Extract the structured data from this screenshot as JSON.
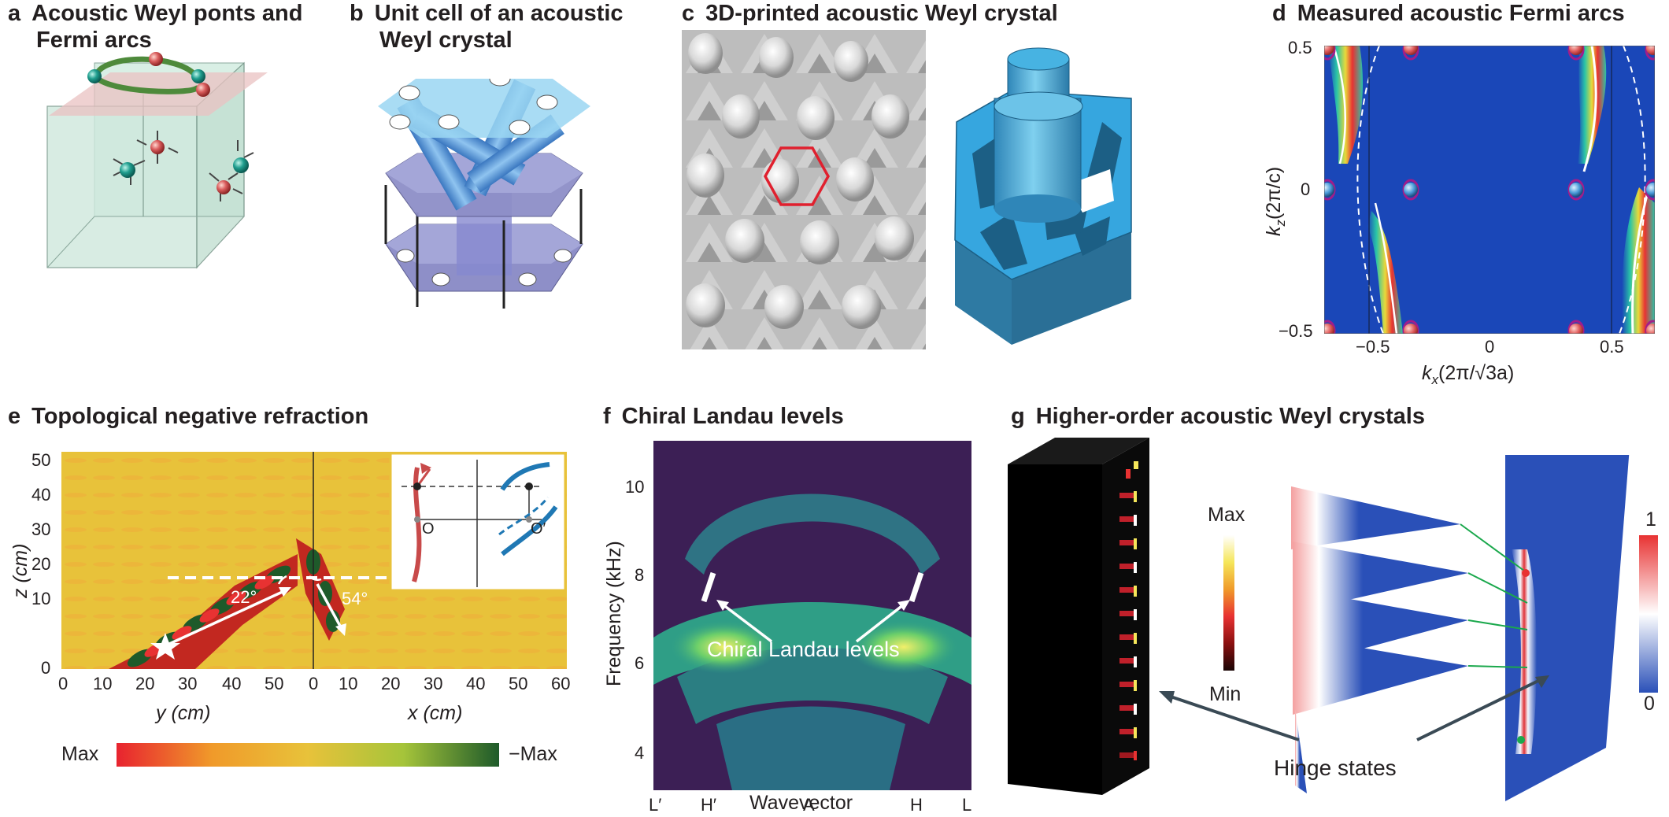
{
  "panels": {
    "a": {
      "letter": "a",
      "title_line1": "Acoustic Weyl ponts and",
      "title_line2": "Fermi arcs"
    },
    "b": {
      "letter": "b",
      "title_line1": "Unit cell of an acoustic",
      "title_line2": "Weyl crystal"
    },
    "c": {
      "letter": "c",
      "title_line1": "3D-printed acoustic Weyl crystal"
    },
    "d": {
      "letter": "d",
      "title_line1": "Measured acoustic Fermi arcs",
      "y_ticks": [
        "0.5",
        "0",
        "−0.5"
      ],
      "x_ticks": [
        "−0.5",
        "0",
        "0.5"
      ],
      "ylabel_k": "k",
      "ylabel_sub": "z",
      "ylabel_unit": "(2π/c)",
      "xlabel_k": "k",
      "xlabel_sub": "x",
      "xlabel_unit": "(2π/√3a)"
    },
    "e": {
      "letter": "e",
      "title_line1": "Topological negative refraction",
      "y_ticks": [
        "50",
        "40",
        "30",
        "20",
        "10",
        "0"
      ],
      "x_ticks_left": [
        "0",
        "10",
        "20",
        "30",
        "40",
        "50"
      ],
      "x_ticks_right": [
        "0",
        "10",
        "20",
        "30",
        "40",
        "50",
        "60"
      ],
      "ylabel": "z (cm)",
      "xlabel_left": "y (cm)",
      "xlabel_right": "x (cm)",
      "angle1": "22°",
      "angle2": "54°",
      "inset_O": "O",
      "inset_O2": "O′",
      "colorbar_max": "Max",
      "colorbar_min": "−Max"
    },
    "f": {
      "letter": "f",
      "title_line1": "Chiral Landau levels",
      "y_ticks": [
        "10",
        "8",
        "6",
        "4"
      ],
      "x_ticks": [
        "L′",
        "H′",
        "A",
        "H",
        "L"
      ],
      "ylabel": "Frequency (kHz)",
      "xlabel": "Wavevector",
      "annotation": "Chiral Landau levels"
    },
    "g": {
      "letter": "g",
      "title_line1": "Higher-order acoustic Weyl crystals",
      "colorbar_max": "Max",
      "colorbar_min": "Min",
      "colorbar2_max": "1",
      "colorbar2_min": "0",
      "annotation": "Hinge states"
    }
  },
  "colors": {
    "teal_sphere": "#1f9e8e",
    "red_sphere": "#d95c5c",
    "arc_green": "#4e8a3b",
    "cube_fill": "#cfe8dd",
    "plane_pink": "#e9c2c2",
    "map_blue": "#1a47b8",
    "rod_blue": "#5b9bd5",
    "block_blue": "#2f9fd8",
    "field_yellow": "#e8c23a",
    "field_red": "#e8232f",
    "field_green": "#1e5a2a",
    "landau_purple": "#3c1f55",
    "landau_green": "#2f9e86",
    "hinge_black": "#000000",
    "edge_green": "#1aa84c"
  }
}
